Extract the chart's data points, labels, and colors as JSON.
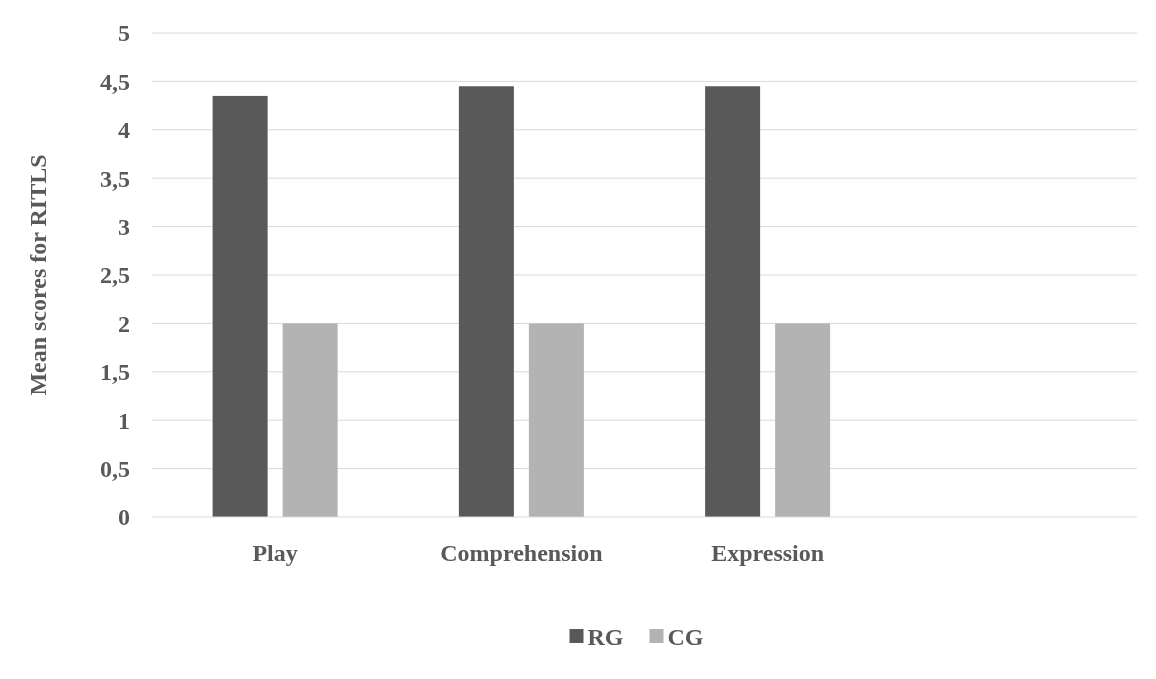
{
  "chart_data": {
    "type": "bar",
    "ylabel": "Mean scores for RITLS",
    "categories": [
      "Play",
      "Comprehension",
      "Expression",
      null
    ],
    "series": [
      {
        "name": "RG",
        "color": "#595959",
        "values": [
          4.35,
          4.45,
          4.45,
          null
        ]
      },
      {
        "name": "CG",
        "color": "#b3b3b3",
        "values": [
          2,
          2,
          2,
          null
        ]
      }
    ],
    "ylim": [
      0,
      5
    ],
    "yticks": [
      0,
      {
        "value": 0.5,
        "label": "0,5"
      },
      1,
      {
        "value": 1.5,
        "label": "1,5"
      },
      2,
      {
        "value": 2.5,
        "label": "2,5"
      },
      3,
      {
        "value": 3.5,
        "label": "3,5"
      },
      4,
      {
        "value": 4.5,
        "label": "4,5"
      },
      5
    ],
    "grid": "y",
    "legend": "bottom"
  }
}
